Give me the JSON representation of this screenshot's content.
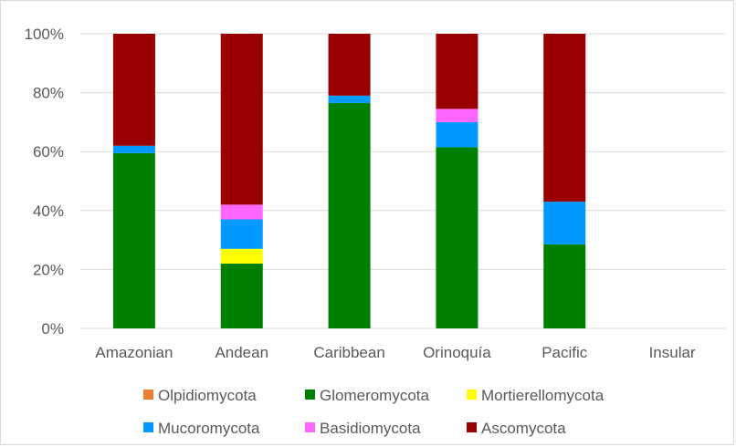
{
  "chart_data": {
    "type": "bar",
    "stacked": true,
    "categories": [
      "Amazonian",
      "Andean",
      "Caribbean",
      "Orinoquía",
      "Pacific",
      "Insular"
    ],
    "ylim": [
      0,
      100
    ],
    "yticks": [
      0,
      20,
      40,
      60,
      80,
      100
    ],
    "ytick_labels": [
      "0%",
      "20%",
      "40%",
      "60%",
      "80%",
      "100%"
    ],
    "grid": true,
    "legend_position": "bottom",
    "series": [
      {
        "name": "Olpidiomycota",
        "color": "#ed7d31",
        "values": [
          0,
          0,
          0,
          0,
          0,
          0
        ]
      },
      {
        "name": "Glomeromycota",
        "color": "#008000",
        "values": [
          59.5,
          22,
          76.5,
          61.5,
          28.5,
          0
        ]
      },
      {
        "name": "Mortierellomycota",
        "color": "#ffff00",
        "values": [
          0,
          5,
          0,
          0,
          0,
          0
        ]
      },
      {
        "name": "Mucoromycota",
        "color": "#0099ff",
        "values": [
          2.5,
          10,
          2.5,
          8.5,
          14.5,
          0
        ]
      },
      {
        "name": "Basidiomycota",
        "color": "#ff66ff",
        "values": [
          0,
          5,
          0,
          4.5,
          0,
          0
        ]
      },
      {
        "name": "Ascomycota",
        "color": "#990000",
        "values": [
          38,
          58,
          21,
          25.5,
          57,
          0
        ]
      }
    ]
  }
}
